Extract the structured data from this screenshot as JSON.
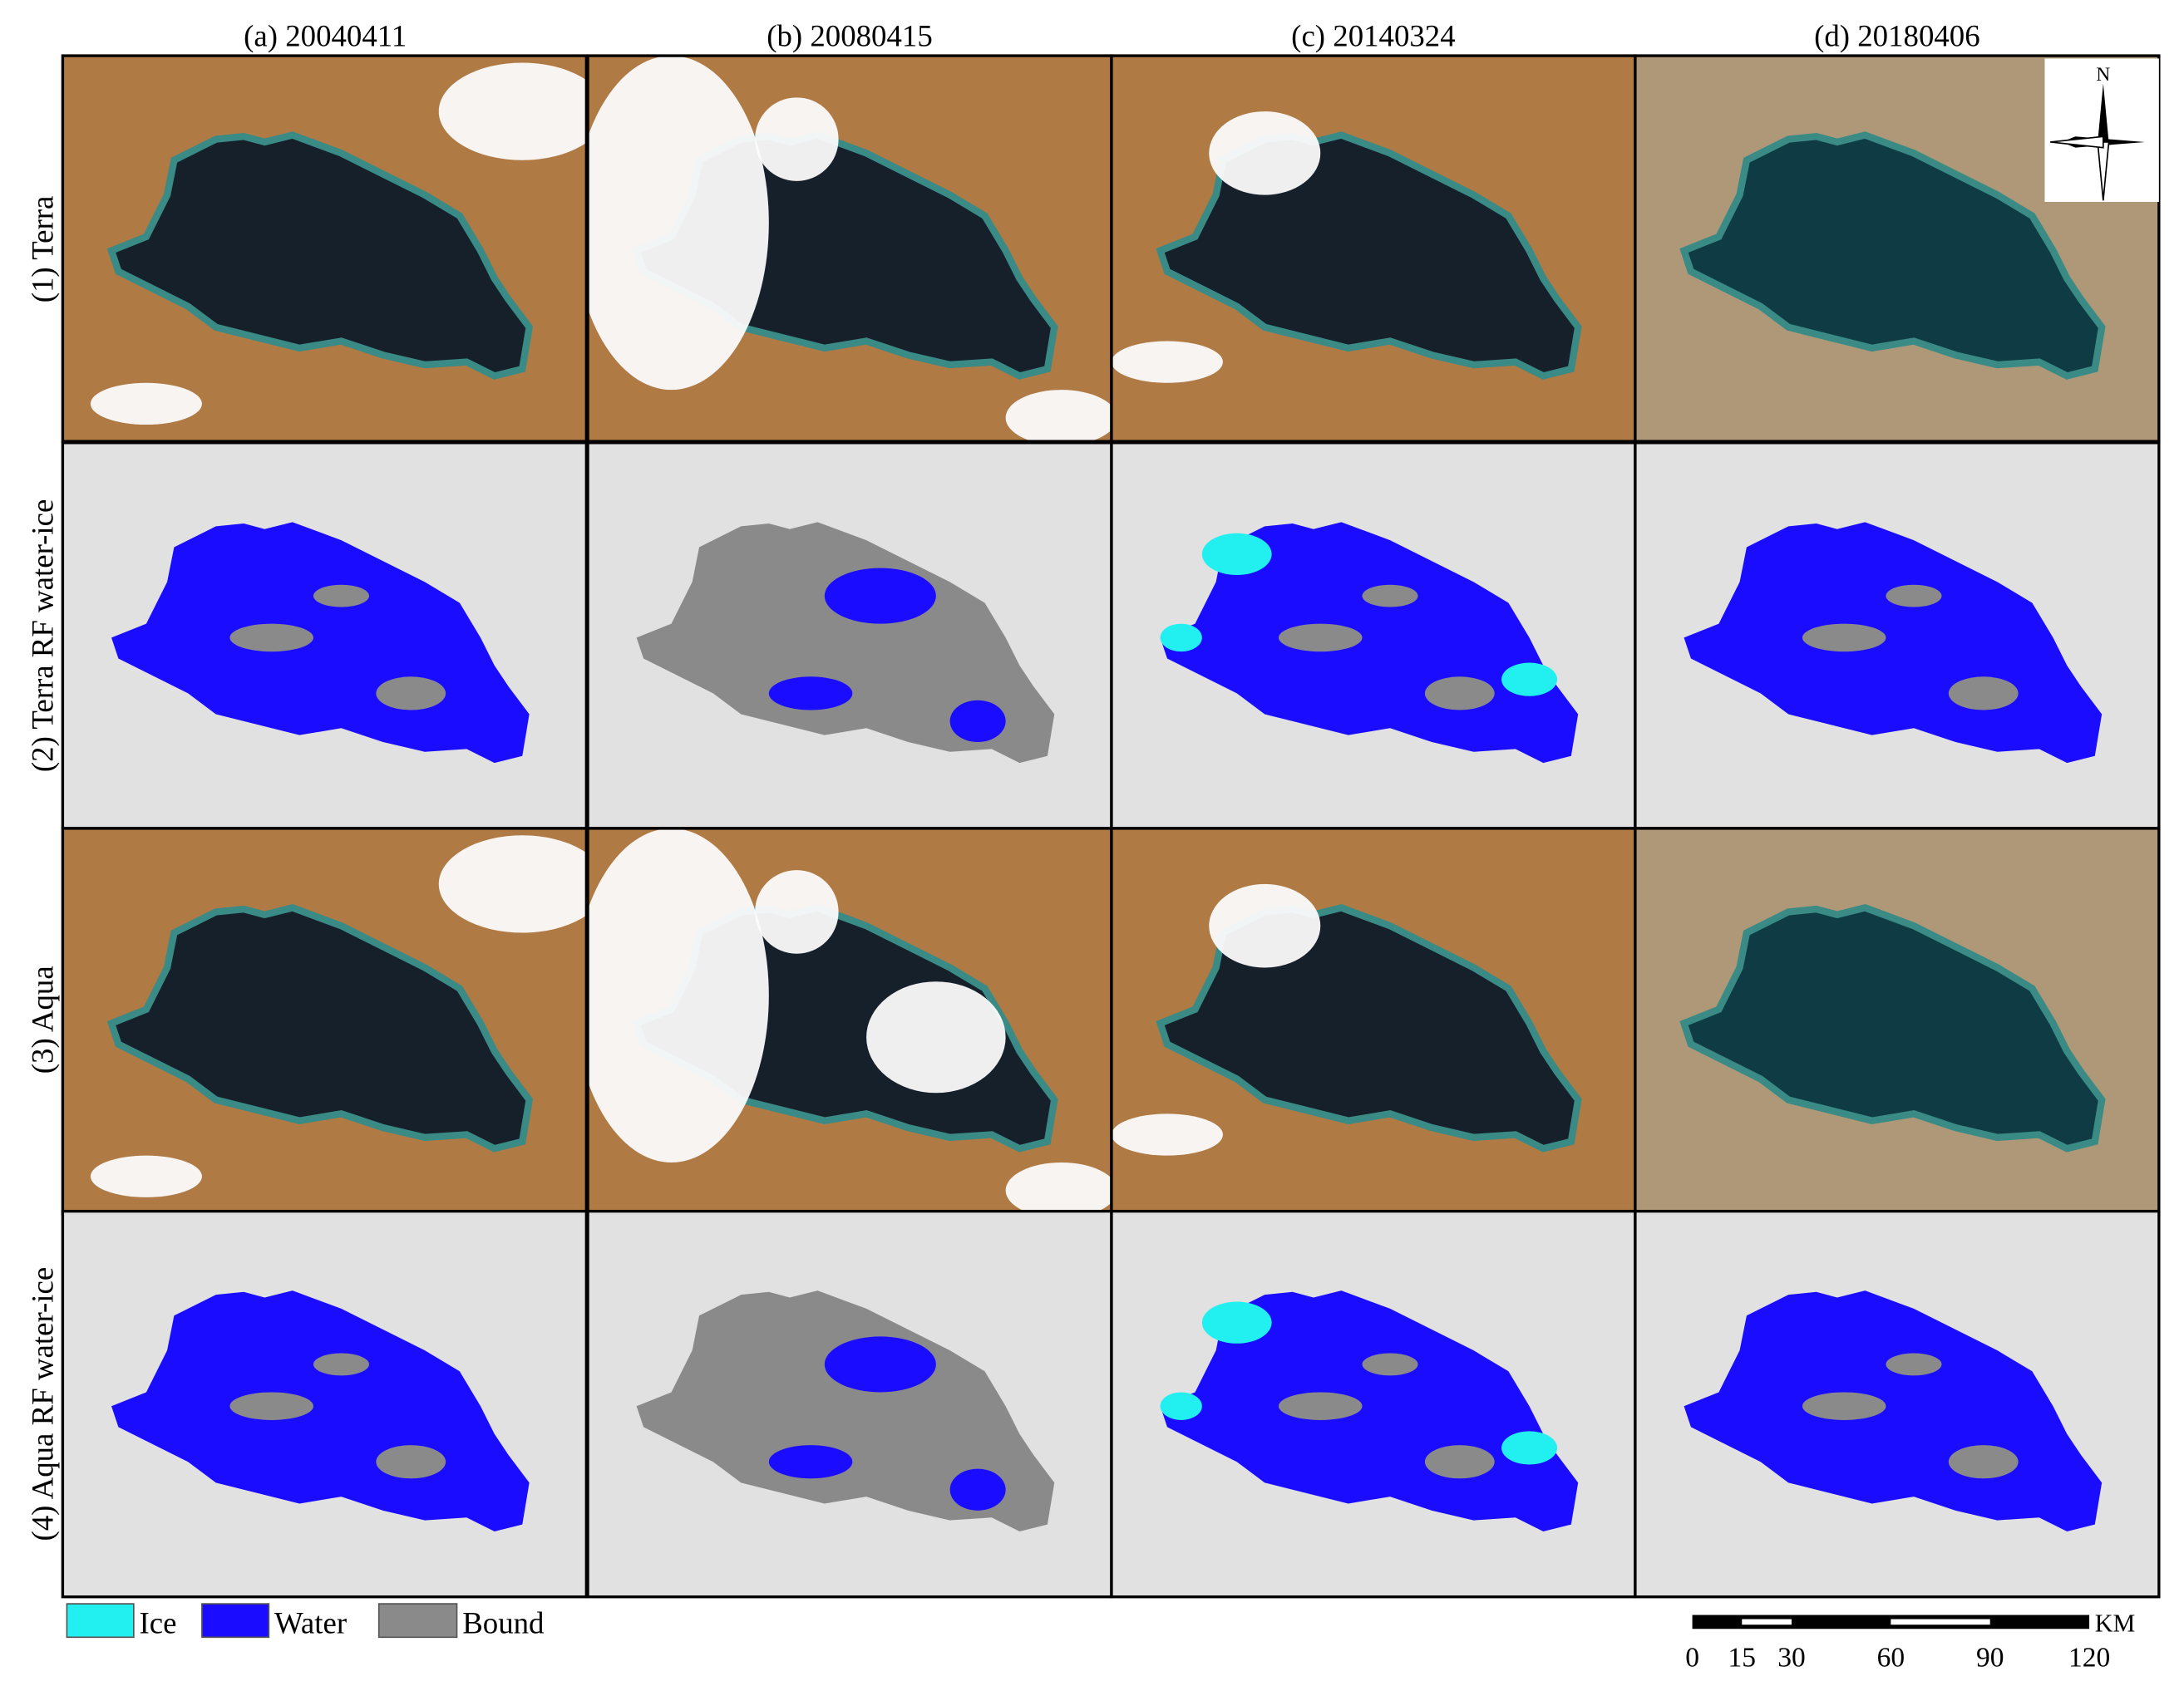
{
  "columns": [
    "(a) 20040411",
    "(b) 20080415",
    "(c) 20140324",
    "(d) 20180406"
  ],
  "rows": [
    "(1) Terra",
    "(2) Terra RF water-ice",
    "(3) Aqua",
    "(4) Aqua RF water-ice"
  ],
  "legend": [
    "Ice",
    "Water",
    "Bound"
  ],
  "north": "N",
  "scale_bar": {
    "unit": "KM",
    "ticks": [
      0,
      15,
      30,
      60,
      90,
      120
    ]
  }
}
